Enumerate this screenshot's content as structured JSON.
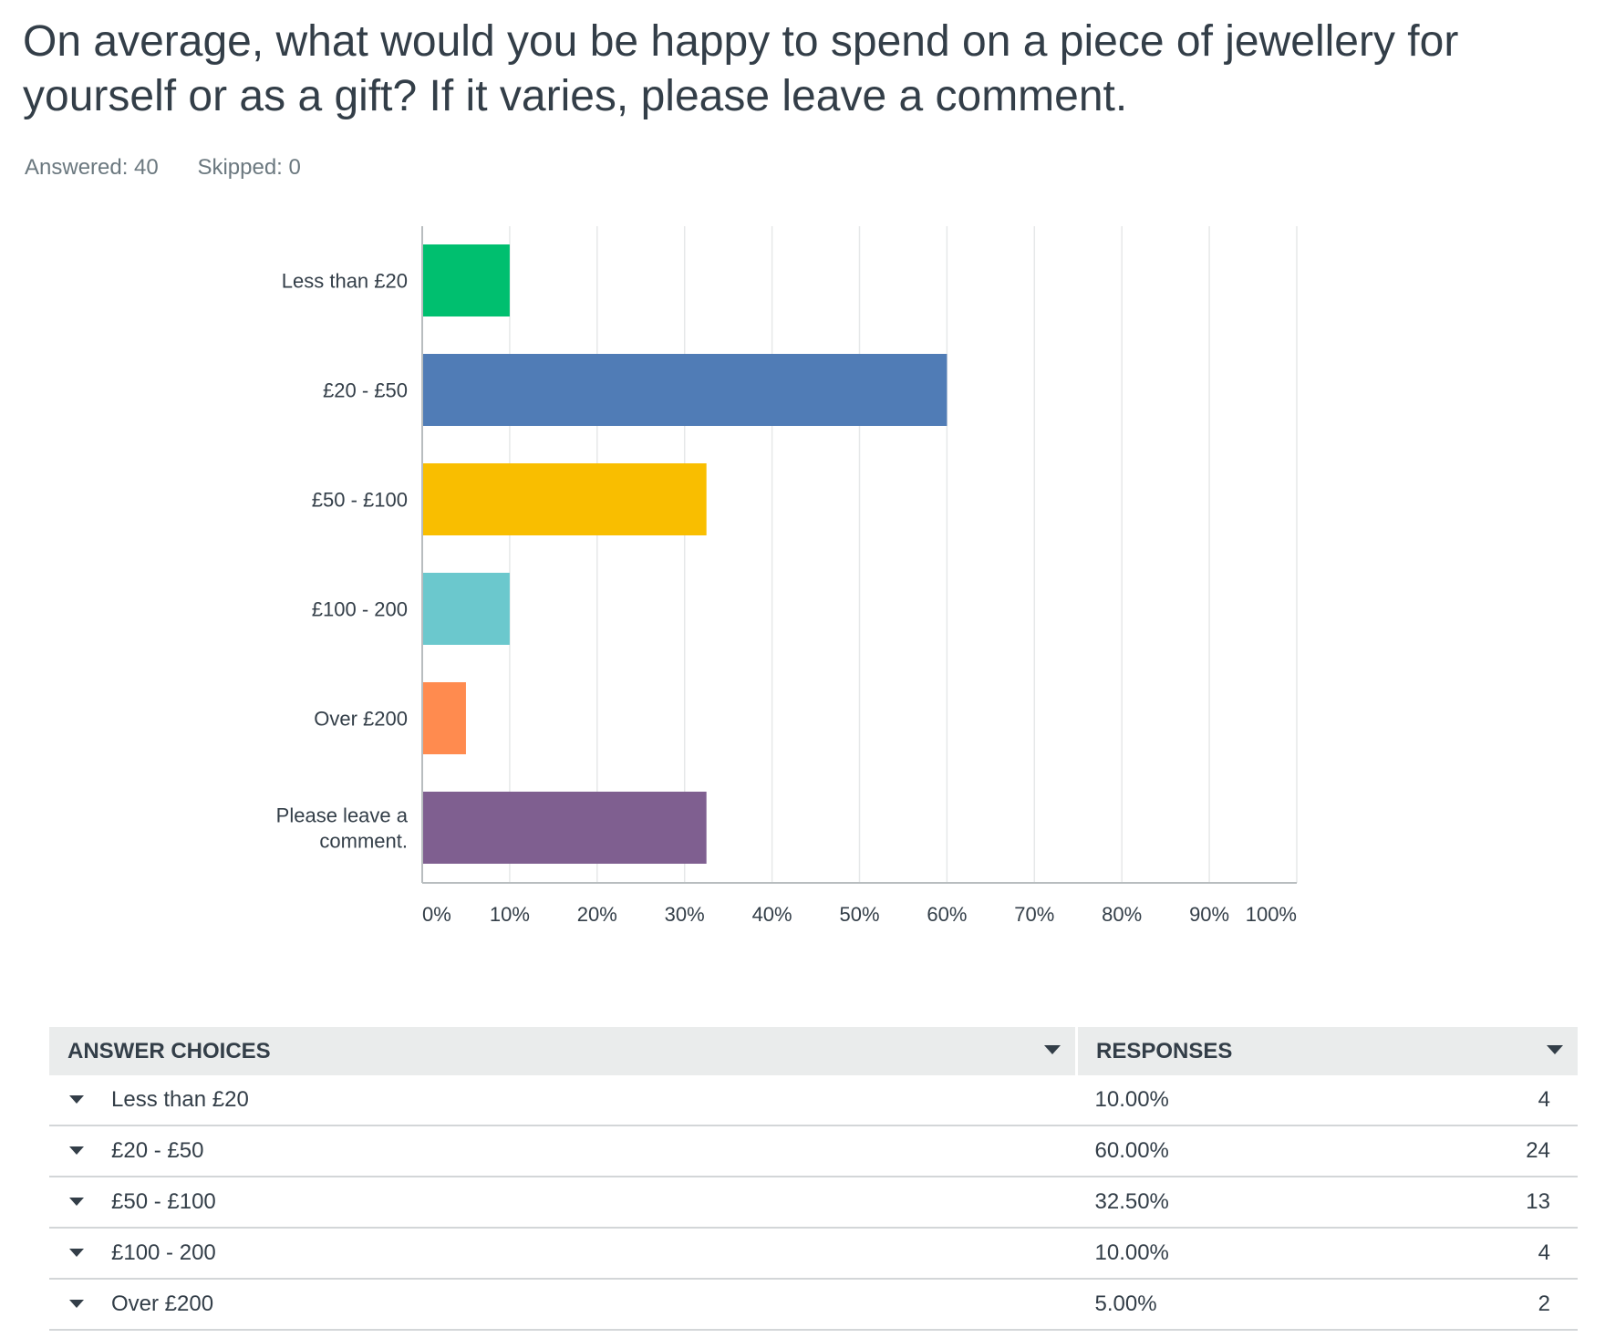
{
  "question": {
    "title": "On average, what would you be happy to spend on a piece of jewellery for yourself or as a gift? If it varies, please leave a comment.",
    "answered": "Answered: 40",
    "skipped": "Skipped: 0"
  },
  "chart_data": {
    "type": "bar",
    "orientation": "horizontal",
    "categories": [
      "Less than £20",
      "£20 - £50",
      "£50 - £100",
      "£100 - 200",
      "Over £200",
      "Please leave a comment."
    ],
    "category_lines": [
      [
        "Less than £20"
      ],
      [
        "£20 - £50"
      ],
      [
        "£50 - £100"
      ],
      [
        "£100 - 200"
      ],
      [
        "Over £200"
      ],
      [
        "Please leave a",
        "comment."
      ]
    ],
    "values": [
      10,
      60,
      32.5,
      10,
      5,
      32.5
    ],
    "colors": [
      "#00bf6f",
      "#507cb6",
      "#f9be00",
      "#6bc8cd",
      "#ff8b4f",
      "#7f5f90"
    ],
    "xlim": [
      0,
      100
    ],
    "xticks": [
      "0%",
      "10%",
      "20%",
      "30%",
      "40%",
      "50%",
      "60%",
      "70%",
      "80%",
      "90%",
      "100%"
    ],
    "grid": true
  },
  "table": {
    "headers": {
      "choices": "ANSWER CHOICES",
      "responses": "RESPONSES"
    },
    "rows": [
      {
        "choice": "Less than £20",
        "percent": "10.00%",
        "count": "4"
      },
      {
        "choice": "£20 - £50",
        "percent": "60.00%",
        "count": "24"
      },
      {
        "choice": "£50 - £100",
        "percent": "32.50%",
        "count": "13"
      },
      {
        "choice": "£100 - 200",
        "percent": "10.00%",
        "count": "4"
      },
      {
        "choice": "Over £200",
        "percent": "5.00%",
        "count": "2"
      }
    ]
  }
}
